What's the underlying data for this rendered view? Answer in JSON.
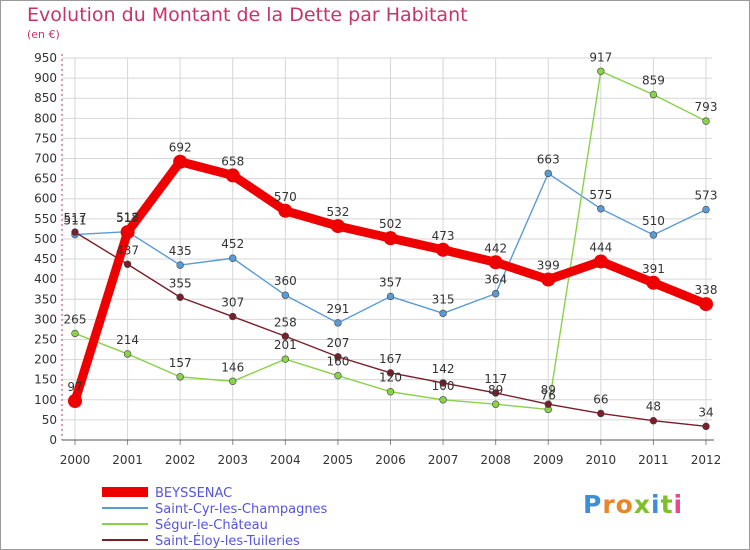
{
  "header": {
    "title": "Evolution du Montant de la Dette par Habitant",
    "subtitle": "(en €)"
  },
  "logo": {
    "text": "Proxiti",
    "colors": [
      "#3a8fd6",
      "#e8862a",
      "#e8862a",
      "#7fbf2a",
      "#3a8fd6",
      "#7fbf2a",
      "#e84a8a"
    ]
  },
  "chart_data": {
    "type": "line",
    "x": [
      "2000",
      "2001",
      "2002",
      "2003",
      "2004",
      "2005",
      "2006",
      "2007",
      "2008",
      "2009",
      "2010",
      "2011",
      "2012"
    ],
    "ylim": [
      0,
      950
    ],
    "yticks": [
      0,
      50,
      100,
      150,
      200,
      250,
      300,
      350,
      400,
      450,
      500,
      550,
      600,
      650,
      700,
      750,
      800,
      850,
      900,
      950
    ],
    "grid": true,
    "legend_position": "bottom-left",
    "series": [
      {
        "name": "BEYSSENAC",
        "color": "#ee0000",
        "emphasis": true,
        "values": [
          97,
          517,
          692,
          658,
          570,
          532,
          502,
          473,
          442,
          399,
          444,
          391,
          338
        ],
        "labels": [
          "97",
          "517",
          "692",
          "658",
          "570",
          "532",
          "502",
          "473",
          "442",
          "399",
          "444",
          "391",
          "338"
        ]
      },
      {
        "name": "Saint-Cyr-les-Champagnes",
        "color": "#5b9bd5",
        "values": [
          511,
          518,
          435,
          452,
          360,
          291,
          357,
          315,
          364,
          663,
          575,
          510,
          573
        ],
        "labels": [
          "511",
          "518",
          "435",
          "452",
          "360",
          "291",
          "357",
          "315",
          "364",
          "663",
          "575",
          "510",
          "573"
        ]
      },
      {
        "name": "Ségur-le-Château",
        "color": "#8ad24a",
        "values": [
          265,
          214,
          157,
          146,
          201,
          160,
          120,
          100,
          89,
          76,
          917,
          859,
          793
        ],
        "labels": [
          "265",
          "214",
          "157",
          "146",
          "201",
          "160",
          "120",
          "100",
          "89",
          "76",
          "917",
          "859",
          "793"
        ]
      },
      {
        "name": "Saint-Éloy-les-Tuileries",
        "color": "#7a1e2a",
        "values": [
          517,
          437,
          355,
          307,
          258,
          207,
          167,
          142,
          117,
          89,
          66,
          48,
          34
        ],
        "labels": [
          "517",
          "437",
          "355",
          "307",
          "258",
          "207",
          "167",
          "142",
          "117",
          "89",
          "66",
          "48",
          "34"
        ]
      }
    ]
  }
}
